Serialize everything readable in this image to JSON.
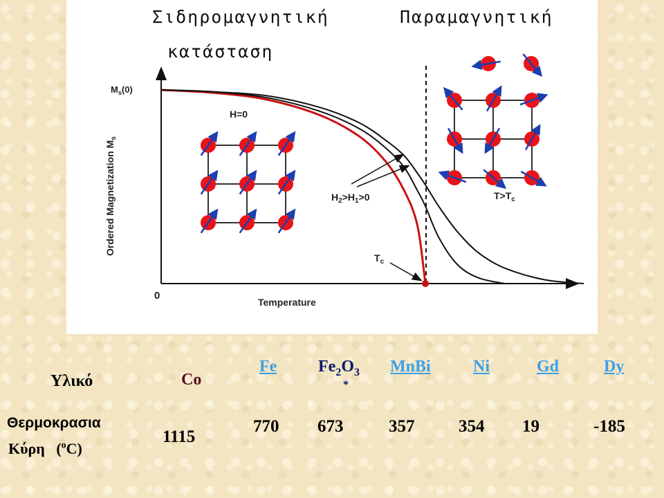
{
  "title_left_line1": "Σιδηρομαγνητική",
  "title_left_line2": "κατάσταση",
  "title_right": "Παραμαγνητική",
  "chart_data": {
    "type": "line",
    "ylabel": "Ordered Magnetization M",
    "ylabel_sub": "s",
    "xlabel": "Temperature",
    "y_top_label": "M",
    "y_top_label_sub": "s",
    "y_top_label_suffix": "(0)",
    "origin_label": "0",
    "grid": false,
    "annotations": {
      "field_zero": "H=0",
      "field_applied": "H",
      "field_applied_sub1": "2",
      "field_applied_mid": ">H",
      "field_applied_sub2": "1",
      "field_applied_suffix": ">0",
      "curie": "T",
      "curie_sub": "c",
      "above_curie": "T>T",
      "above_curie_sub": "c"
    },
    "series": [
      {
        "color": "#cc1111",
        "x": [
          0,
          0.2,
          0.4,
          0.6,
          0.75,
          0.85,
          0.92,
          0.97,
          1.0
        ],
        "y": [
          1.0,
          0.985,
          0.95,
          0.87,
          0.76,
          0.63,
          0.48,
          0.3,
          0.0
        ]
      },
      {
        "color": "#111111",
        "x": [
          0,
          0.2,
          0.4,
          0.6,
          0.75,
          0.85,
          0.92,
          0.97,
          1.0,
          1.05,
          1.12,
          1.2,
          1.3
        ],
        "y": [
          1.0,
          0.99,
          0.96,
          0.89,
          0.8,
          0.7,
          0.6,
          0.48,
          0.4,
          0.24,
          0.1,
          0.03,
          0.0
        ]
      },
      {
        "color": "#111111",
        "x": [
          0,
          0.2,
          0.4,
          0.6,
          0.75,
          0.85,
          0.92,
          0.97,
          1.0,
          1.05,
          1.12,
          1.2,
          1.3,
          1.45,
          1.6
        ],
        "y": [
          1.0,
          0.99,
          0.97,
          0.91,
          0.83,
          0.74,
          0.66,
          0.57,
          0.51,
          0.4,
          0.27,
          0.16,
          0.08,
          0.02,
          0.0
        ]
      }
    ]
  },
  "table": {
    "header_label": "Υλικό",
    "row_label_line1": "Θερμοκρασια",
    "row_label_line2": "Κύρη",
    "unit_prefix": "(",
    "unit_sup": "o",
    "unit_suffix": "C)",
    "materials": [
      {
        "name": "Co",
        "value": "1115"
      },
      {
        "name": "Fe",
        "value": "770"
      },
      {
        "name": "Fe",
        "sub": "2",
        "mid": "O",
        "sub2": "3",
        "value": "673"
      },
      {
        "name": "MnBi",
        "value": "357"
      },
      {
        "name": "Ni",
        "value": "354"
      },
      {
        "name": "Gd",
        "value": "19"
      },
      {
        "name": "Dy",
        "value": "-185"
      }
    ],
    "footnote_mark": "*"
  }
}
